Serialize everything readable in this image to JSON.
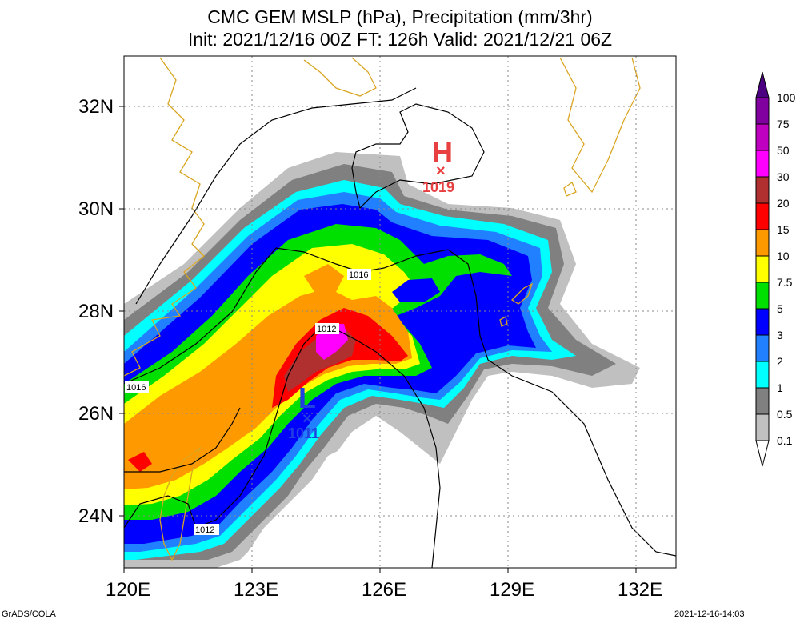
{
  "title": {
    "line1": "CMC GEM MSLP (hPa), Precipitation (mm/3hr)",
    "line2": "Init: 2021/12/16 00Z  FT: 126h  Valid: 2021/12/21 06Z"
  },
  "axes": {
    "lat_labels": [
      "32N",
      "30N",
      "28N",
      "26N",
      "24N"
    ],
    "lon_labels": [
      "120E",
      "123E",
      "126E",
      "129E",
      "132E"
    ]
  },
  "pressure_centers": {
    "high": {
      "symbol": "H",
      "value": "1019",
      "color": "#e84040"
    },
    "low": {
      "symbol": "L",
      "value": "1011",
      "color": "#2040e0"
    }
  },
  "isobar_labels": [
    "1016",
    "1012",
    "1016",
    "1012"
  ],
  "colorbar": {
    "labels": [
      "100",
      "75",
      "50",
      "30",
      "20",
      "15",
      "10",
      "7.5",
      "5",
      "3",
      "2",
      "1",
      "0.5",
      "0.1"
    ],
    "colors": [
      "#8000a0",
      "#c000c0",
      "#ff00ff",
      "#b03030",
      "#ff0000",
      "#ff9900",
      "#ffff00",
      "#00e000",
      "#0000ff",
      "#2080ff",
      "#00ffff",
      "#808080",
      "#c0c0c0",
      "#ffffff"
    ]
  },
  "footer": {
    "left": "GrADS/COLA",
    "right": "2021-12-16-14:03"
  }
}
